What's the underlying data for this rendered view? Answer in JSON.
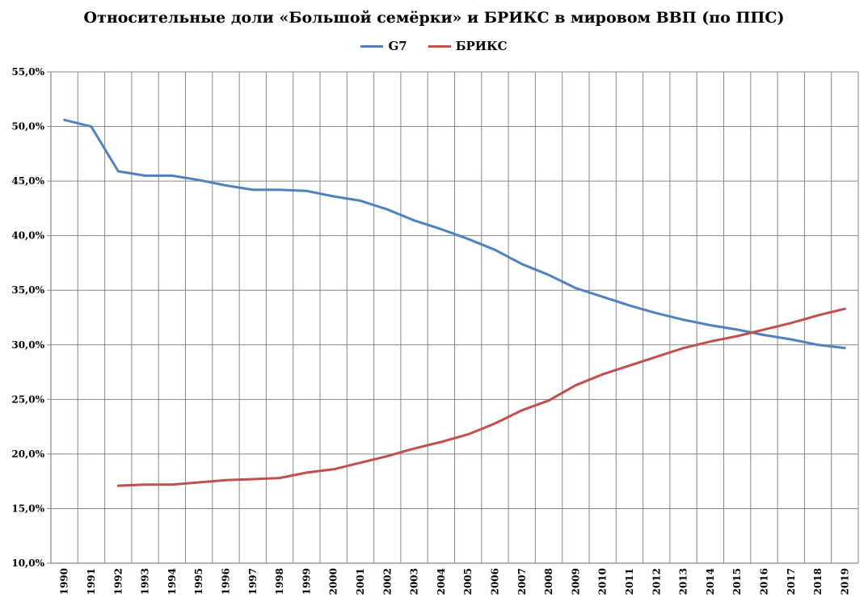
{
  "chart_data": {
    "type": "line",
    "title": "Относительные доли «Большой семёрки» и БРИКС в мировом ВВП (по ППС)",
    "xlabel": "",
    "ylabel": "",
    "x": [
      "1990",
      "1991",
      "1992",
      "1993",
      "1994",
      "1995",
      "1996",
      "1997",
      "1998",
      "1999",
      "2000",
      "2001",
      "2002",
      "2003",
      "2004",
      "2005",
      "2006",
      "2007",
      "2008",
      "2009",
      "2010",
      "2011",
      "2012",
      "2013",
      "2014",
      "2015",
      "2016",
      "2017",
      "2018",
      "2019"
    ],
    "ylim": [
      10,
      55
    ],
    "yticks": [
      "10,0%",
      "15,0%",
      "20,0%",
      "25,0%",
      "30,0%",
      "35,0%",
      "40,0%",
      "45,0%",
      "50,0%",
      "55,0%"
    ],
    "grid": true,
    "legend_position": "top",
    "series": [
      {
        "name": "G7",
        "color": "#4F81BD",
        "values": [
          50.6,
          50.0,
          45.9,
          45.5,
          45.5,
          45.1,
          44.6,
          44.2,
          44.2,
          44.1,
          43.6,
          43.2,
          42.4,
          41.4,
          40.6,
          39.7,
          38.7,
          37.4,
          36.4,
          35.2,
          34.4,
          33.6,
          32.9,
          32.3,
          31.8,
          31.4,
          30.9,
          30.5,
          30.0,
          29.7
        ]
      },
      {
        "name": "БРИКС",
        "color": "#C0504D",
        "values": [
          null,
          null,
          17.1,
          17.2,
          17.2,
          17.4,
          17.6,
          17.7,
          17.8,
          18.3,
          18.6,
          19.2,
          19.8,
          20.5,
          21.1,
          21.8,
          22.8,
          24.0,
          24.9,
          26.3,
          27.3,
          28.1,
          28.9,
          29.7,
          30.3,
          30.8,
          31.4,
          32.0,
          32.7,
          33.3
        ]
      }
    ]
  }
}
